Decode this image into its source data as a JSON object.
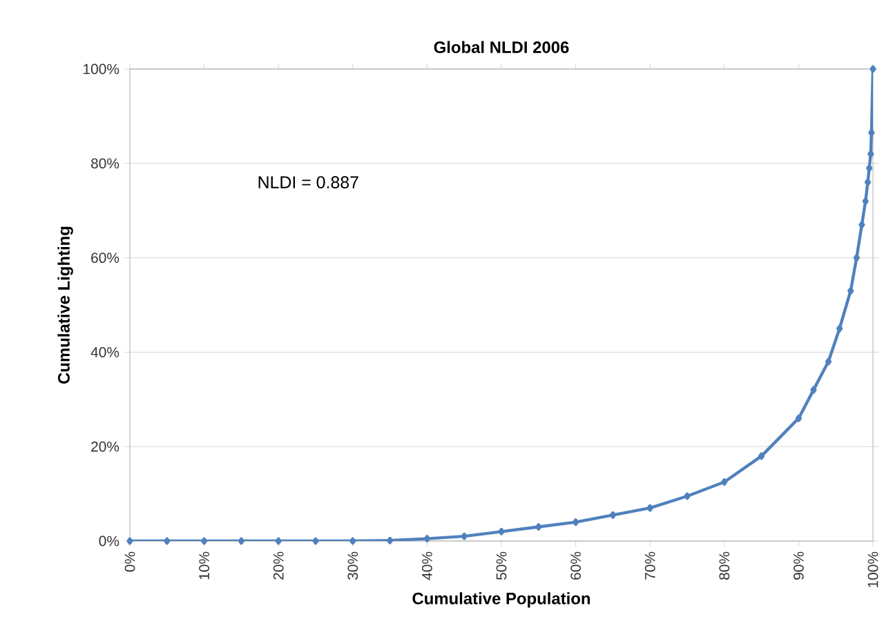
{
  "chart_data": {
    "type": "line",
    "title": "Global NLDI 2006",
    "xlabel": "Cumulative Population",
    "ylabel": "Cumulative Lighting",
    "annotations": [
      "NLDI = 0.887"
    ],
    "x": [
      0,
      5,
      10,
      15,
      20,
      25,
      30,
      35,
      40,
      45,
      50,
      55,
      60,
      65,
      70,
      75,
      80,
      85,
      90,
      92,
      94,
      95.5,
      97,
      97.8,
      98.5,
      99,
      99.3,
      99.5,
      99.7,
      99.8,
      100
    ],
    "series": [
      {
        "color": "#4f81bd",
        "values": [
          0,
          0,
          0,
          0,
          0,
          0,
          0,
          0.1,
          0.5,
          1,
          2,
          3,
          4,
          5.5,
          7,
          9.5,
          12.5,
          18,
          26,
          32,
          38,
          45,
          53,
          60,
          67,
          72,
          76,
          79,
          82,
          86.5,
          100
        ]
      }
    ],
    "xlim": [
      0,
      100
    ],
    "ylim": [
      0,
      100
    ],
    "xticks": [
      {
        "value": 0,
        "label": "0%"
      },
      {
        "value": 10,
        "label": "10%"
      },
      {
        "value": 20,
        "label": "20%"
      },
      {
        "value": 30,
        "label": "30%"
      },
      {
        "value": 40,
        "label": "40%"
      },
      {
        "value": 50,
        "label": "50%"
      },
      {
        "value": 60,
        "label": "60%"
      },
      {
        "value": 70,
        "label": "70%"
      },
      {
        "value": 80,
        "label": "80%"
      },
      {
        "value": 90,
        "label": "90%"
      },
      {
        "value": 100,
        "label": "100%"
      }
    ],
    "yticks": [
      {
        "value": 0,
        "label": "0%"
      },
      {
        "value": 20,
        "label": "20%"
      },
      {
        "value": 40,
        "label": "40%"
      },
      {
        "value": 60,
        "label": "60%"
      },
      {
        "value": 80,
        "label": "80%"
      },
      {
        "value": 100,
        "label": "100%"
      }
    ],
    "grid": "y",
    "marker": "diamond",
    "line_style": "solid"
  }
}
